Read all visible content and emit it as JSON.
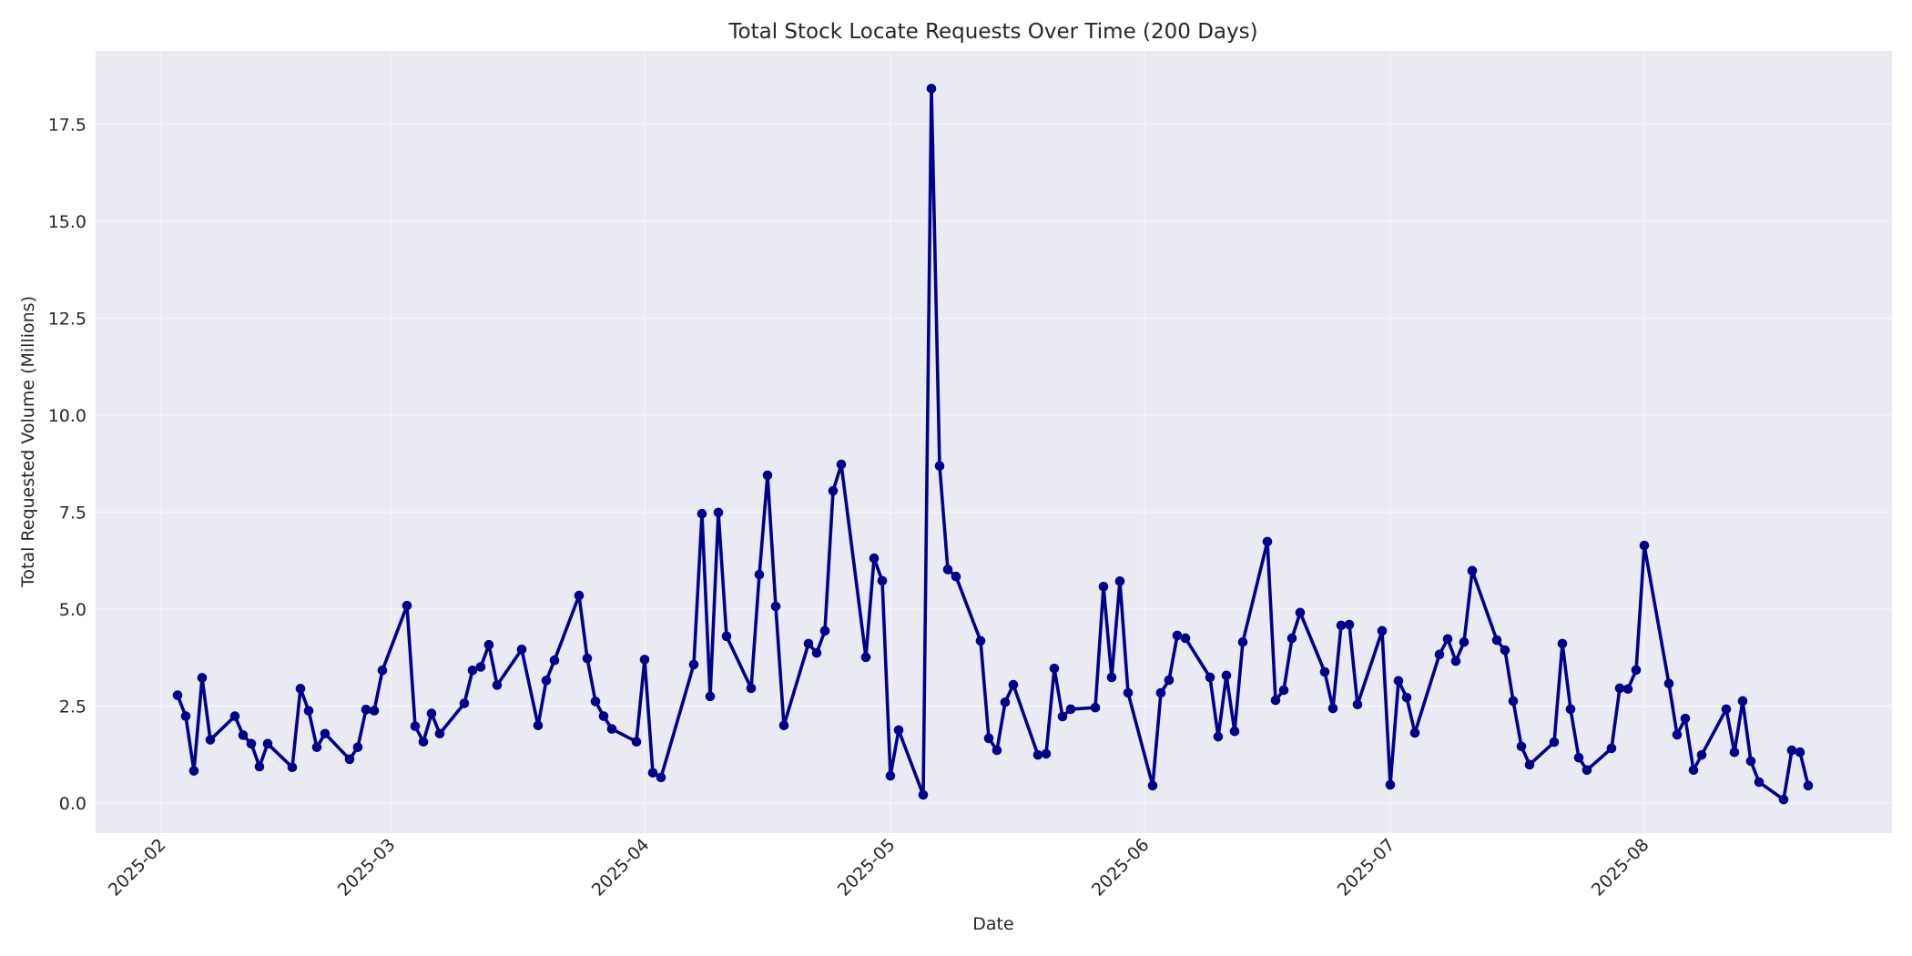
{
  "chart_data": {
    "type": "line",
    "title": "Total Stock Locate Requests Over Time (200 Days)",
    "xlabel": "Date",
    "ylabel": "Total Requested Volume (Millions)",
    "x_tick_labels": [
      "2025-02",
      "2025-03",
      "2025-04",
      "2025-05",
      "2025-06",
      "2025-07",
      "2025-08"
    ],
    "y_tick_labels": [
      "0.0",
      "2.5",
      "5.0",
      "7.5",
      "10.0",
      "12.5",
      "15.0",
      "17.5"
    ],
    "y_ticks": [
      0,
      2.5,
      5,
      7.5,
      10,
      12.5,
      15,
      17.5
    ],
    "ylim": [
      -0.77,
      19.39
    ],
    "xlim": [
      "2025-01-27",
      "2025-08-29"
    ],
    "grid": true,
    "legend": null,
    "line_color": "#00008b",
    "marker": "circle",
    "plot_background": "#eaeaf2",
    "series": [
      {
        "name": "Total Requested Volume",
        "x": [
          "2025-02-03",
          "2025-02-04",
          "2025-02-05",
          "2025-02-06",
          "2025-02-07",
          "2025-02-10",
          "2025-02-11",
          "2025-02-12",
          "2025-02-13",
          "2025-02-14",
          "2025-02-17",
          "2025-02-18",
          "2025-02-19",
          "2025-02-20",
          "2025-02-21",
          "2025-02-24",
          "2025-02-25",
          "2025-02-26",
          "2025-02-27",
          "2025-02-28",
          "2025-03-03",
          "2025-03-04",
          "2025-03-05",
          "2025-03-06",
          "2025-03-07",
          "2025-03-10",
          "2025-03-11",
          "2025-03-12",
          "2025-03-13",
          "2025-03-14",
          "2025-03-17",
          "2025-03-19",
          "2025-03-20",
          "2025-03-21",
          "2025-03-24",
          "2025-03-25",
          "2025-03-26",
          "2025-03-27",
          "2025-03-28",
          "2025-03-31",
          "2025-04-01",
          "2025-04-02",
          "2025-04-03",
          "2025-04-07",
          "2025-04-08",
          "2025-04-09",
          "2025-04-10",
          "2025-04-11",
          "2025-04-14",
          "2025-04-15",
          "2025-04-16",
          "2025-04-17",
          "2025-04-18",
          "2025-04-21",
          "2025-04-22",
          "2025-04-23",
          "2025-04-24",
          "2025-04-25",
          "2025-04-28",
          "2025-04-29",
          "2025-04-30",
          "2025-05-01",
          "2025-05-02",
          "2025-05-05",
          "2025-05-06",
          "2025-05-07",
          "2025-05-08",
          "2025-05-09",
          "2025-05-12",
          "2025-05-13",
          "2025-05-14",
          "2025-05-15",
          "2025-05-16",
          "2025-05-19",
          "2025-05-20",
          "2025-05-21",
          "2025-05-22",
          "2025-05-23",
          "2025-05-26",
          "2025-05-27",
          "2025-05-28",
          "2025-05-29",
          "2025-05-30",
          "2025-06-02",
          "2025-06-03",
          "2025-06-04",
          "2025-06-05",
          "2025-06-06",
          "2025-06-09",
          "2025-06-10",
          "2025-06-11",
          "2025-06-12",
          "2025-06-13",
          "2025-06-16",
          "2025-06-17",
          "2025-06-18",
          "2025-06-19",
          "2025-06-20",
          "2025-06-23",
          "2025-06-24",
          "2025-06-25",
          "2025-06-26",
          "2025-06-27",
          "2025-06-30",
          "2025-07-01",
          "2025-07-02",
          "2025-07-03",
          "2025-07-04",
          "2025-07-07",
          "2025-07-08",
          "2025-07-09",
          "2025-07-10",
          "2025-07-11",
          "2025-07-14",
          "2025-07-15",
          "2025-07-16",
          "2025-07-17",
          "2025-07-18",
          "2025-07-21",
          "2025-07-22",
          "2025-07-23",
          "2025-07-24",
          "2025-07-25",
          "2025-07-28",
          "2025-07-29",
          "2025-07-30",
          "2025-07-31",
          "2025-08-01",
          "2025-08-04",
          "2025-08-05",
          "2025-08-06",
          "2025-08-07",
          "2025-08-08",
          "2025-08-11",
          "2025-08-12",
          "2025-08-13",
          "2025-08-14",
          "2025-08-15",
          "2025-08-18",
          "2025-08-19",
          "2025-08-20",
          "2025-08-21"
        ],
        "day_offsets": [
          2,
          3,
          4,
          5,
          6,
          9,
          10,
          11,
          12,
          13,
          16,
          17,
          18,
          19,
          20,
          23,
          24,
          25,
          26,
          27,
          30,
          31,
          32,
          33,
          34,
          37,
          38,
          39,
          40,
          41,
          44,
          46,
          47,
          48,
          51,
          52,
          53,
          54,
          55,
          58,
          59,
          60,
          61,
          65,
          66,
          67,
          68,
          69,
          72,
          73,
          74,
          75,
          76,
          79,
          80,
          81,
          82,
          83,
          86,
          87,
          88,
          89,
          90,
          93,
          94,
          95,
          96,
          97,
          100,
          101,
          102,
          103,
          104,
          107,
          108,
          109,
          110,
          111,
          114,
          115,
          116,
          117,
          118,
          121,
          122,
          123,
          124,
          125,
          128,
          129,
          130,
          131,
          132,
          135,
          136,
          137,
          138,
          139,
          142,
          143,
          144,
          145,
          146,
          149,
          150,
          151,
          152,
          153,
          156,
          157,
          158,
          159,
          160,
          163,
          164,
          165,
          166,
          167,
          170,
          171,
          172,
          173,
          174,
          177,
          178,
          179,
          180,
          181,
          184,
          185,
          186,
          187,
          188,
          191,
          192,
          193,
          194,
          195,
          198,
          199,
          200,
          201
        ],
        "values": [
          2.78,
          2.24,
          0.83,
          3.23,
          1.63,
          2.24,
          1.75,
          1.53,
          0.94,
          1.53,
          0.92,
          2.95,
          2.38,
          1.44,
          1.79,
          1.13,
          1.44,
          2.41,
          2.38,
          3.42,
          5.09,
          1.98,
          1.58,
          2.31,
          1.79,
          2.57,
          3.42,
          3.51,
          4.08,
          3.04,
          3.96,
          2.0,
          3.16,
          3.68,
          5.35,
          3.73,
          2.62,
          2.24,
          1.91,
          1.58,
          3.7,
          0.78,
          0.66,
          3.57,
          7.46,
          2.75,
          7.49,
          4.3,
          2.96,
          5.89,
          8.45,
          5.07,
          2.0,
          4.11,
          3.87,
          4.44,
          8.05,
          8.73,
          3.76,
          6.31,
          5.73,
          0.7,
          1.88,
          0.21,
          18.42,
          8.69,
          6.02,
          5.84,
          4.18,
          1.67,
          1.36,
          2.6,
          3.05,
          1.24,
          1.27,
          3.47,
          2.23,
          2.42,
          2.46,
          5.58,
          3.24,
          5.72,
          2.84,
          0.45,
          2.84,
          3.17,
          4.32,
          4.25,
          3.24,
          1.71,
          3.29,
          1.85,
          4.15,
          6.74,
          2.65,
          2.91,
          4.25,
          4.91,
          3.38,
          2.44,
          4.58,
          4.6,
          2.54,
          4.44,
          0.47,
          3.15,
          2.72,
          1.81,
          3.83,
          4.23,
          3.66,
          4.15,
          5.99,
          4.2,
          3.94,
          2.63,
          1.46,
          0.99,
          1.57,
          4.11,
          2.42,
          1.17,
          0.85,
          1.41,
          2.96,
          2.94,
          3.43,
          6.64,
          3.08,
          1.76,
          2.18,
          0.85,
          1.24,
          2.42,
          1.31,
          2.63,
          1.08,
          0.54,
          0.09,
          1.36,
          1.31,
          0.45
        ]
      }
    ],
    "month_tick_offsets": [
      0,
      28,
      59,
      89,
      120,
      150,
      181
    ]
  }
}
